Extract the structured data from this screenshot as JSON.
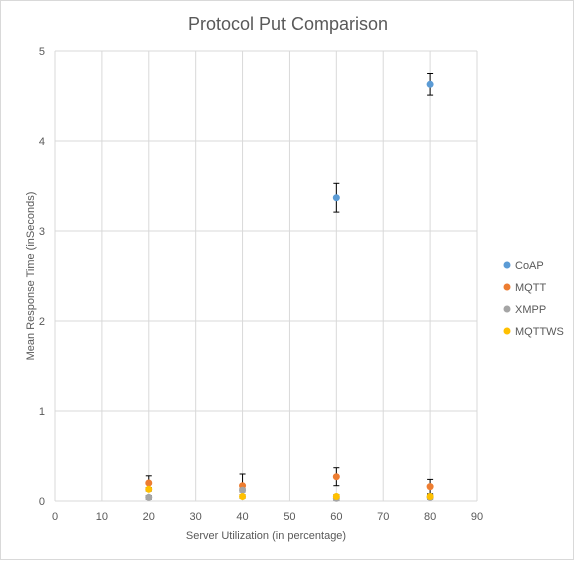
{
  "chart_data": {
    "type": "scatter",
    "title": "Protocol Put Comparison",
    "xlabel": "Server Utilization (in percentage)",
    "ylabel": "Mean Response Time (inSeconds)",
    "xlim": [
      0,
      90
    ],
    "ylim": [
      0,
      5
    ],
    "x_ticks": [
      0,
      10,
      20,
      30,
      40,
      50,
      60,
      70,
      80,
      90
    ],
    "y_ticks": [
      0,
      1,
      2,
      3,
      4,
      5
    ],
    "grid": true,
    "legend_position": "right",
    "series": [
      {
        "name": "CoAP",
        "color": "#5b9bd5",
        "points": [
          {
            "x": 60,
            "y": 3.37,
            "err": 0.16
          },
          {
            "x": 80,
            "y": 4.63,
            "err": 0.12
          }
        ]
      },
      {
        "name": "MQTT",
        "color": "#ed7d31",
        "points": [
          {
            "x": 20,
            "y": 0.2,
            "err": 0.08
          },
          {
            "x": 40,
            "y": 0.17,
            "err": 0.13
          },
          {
            "x": 60,
            "y": 0.27,
            "err": 0.1
          },
          {
            "x": 80,
            "y": 0.16,
            "err": 0.08
          }
        ]
      },
      {
        "name": "XMPP",
        "color": "#a5a5a5",
        "points": [
          {
            "x": 20,
            "y": 0.04,
            "err": 0.02
          },
          {
            "x": 40,
            "y": 0.12,
            "err": 0.02
          },
          {
            "x": 60,
            "y": 0.03,
            "err": 0.02
          },
          {
            "x": 80,
            "y": 0.04,
            "err": 0.02
          }
        ]
      },
      {
        "name": "MQTTWS",
        "color": "#ffc000",
        "points": [
          {
            "x": 20,
            "y": 0.13,
            "err": 0.02
          },
          {
            "x": 40,
            "y": 0.05,
            "err": 0.02
          },
          {
            "x": 60,
            "y": 0.05,
            "err": 0.02
          },
          {
            "x": 80,
            "y": 0.05,
            "err": 0.02
          }
        ]
      }
    ]
  }
}
